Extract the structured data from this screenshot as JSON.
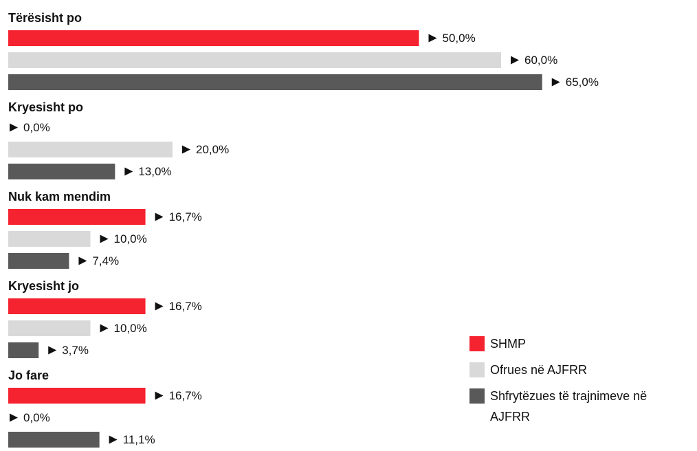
{
  "chart_data": {
    "type": "bar",
    "orientation": "horizontal",
    "categories": [
      "Tërësisht po",
      "Kryesisht po",
      "Nuk kam mendim",
      "Kryesisht jo",
      "Jo fare"
    ],
    "series": [
      {
        "name": "SHMP",
        "color": "#f5222f",
        "values": [
          50.0,
          0.0,
          16.7,
          16.7,
          16.7
        ],
        "value_labels": [
          "50,0%",
          "0,0%",
          "16,7%",
          "16,7%",
          "16,7%"
        ]
      },
      {
        "name": "Ofrues në AJFRR",
        "color": "#d9d9d9",
        "values": [
          60.0,
          20.0,
          10.0,
          10.0,
          0.0
        ],
        "value_labels": [
          "60,0%",
          "20,0%",
          "10,0%",
          "10,0%",
          "0,0%"
        ]
      },
      {
        "name": "Shfrytëzues të trajnimeve në AJFRR",
        "color": "#595959",
        "values": [
          65.0,
          13.0,
          7.4,
          3.7,
          11.1
        ],
        "value_labels": [
          "65,0%",
          "13,0%",
          "7,4%",
          "3,7%",
          "11,1%"
        ]
      }
    ],
    "legend": "right"
  }
}
